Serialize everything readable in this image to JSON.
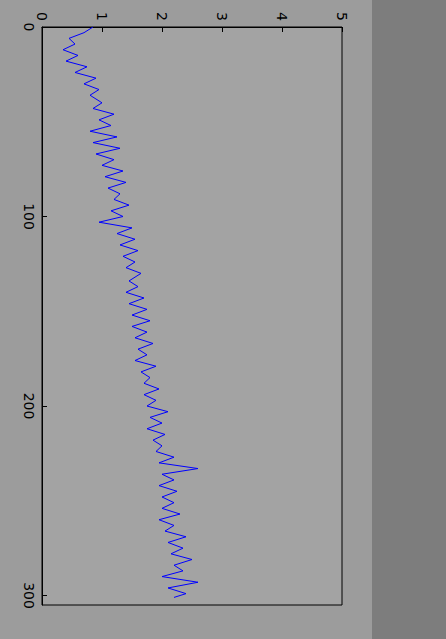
{
  "chart_data": {
    "type": "line",
    "orientation": "horizontal",
    "x": [
      0,
      3,
      6,
      9,
      12,
      15,
      18,
      21,
      24,
      27,
      30,
      33,
      36,
      40,
      43,
      46,
      49,
      52,
      55,
      58,
      61,
      64,
      67,
      70,
      73,
      76,
      79,
      82,
      85,
      88,
      91,
      94,
      97,
      100,
      103,
      106,
      109,
      112,
      115,
      118,
      121,
      124,
      127,
      130,
      134,
      137,
      140,
      143,
      146,
      149,
      152,
      155,
      158,
      161,
      164,
      167,
      170,
      173,
      176,
      179,
      182,
      185,
      188,
      191,
      194,
      197,
      200,
      203,
      206,
      209,
      212,
      215,
      218,
      221,
      224,
      227,
      230,
      233,
      236,
      239,
      242,
      245,
      248,
      251,
      254,
      257,
      260,
      263,
      266,
      269,
      272,
      275,
      278,
      281,
      284,
      287,
      290,
      293,
      296,
      299,
      301
    ],
    "values": [
      0.85,
      0.7,
      0.45,
      0.55,
      0.35,
      0.6,
      0.4,
      0.75,
      0.55,
      0.9,
      0.7,
      0.95,
      0.8,
      1.0,
      0.85,
      1.2,
      0.95,
      1.15,
      0.8,
      1.25,
      0.85,
      1.3,
      0.9,
      1.2,
      1.0,
      1.35,
      1.05,
      1.4,
      1.1,
      1.3,
      1.2,
      1.45,
      1.15,
      1.35,
      0.95,
      1.5,
      1.25,
      1.55,
      1.3,
      1.6,
      1.35,
      1.55,
      1.4,
      1.65,
      1.45,
      1.6,
      1.4,
      1.7,
      1.45,
      1.75,
      1.5,
      1.8,
      1.5,
      1.75,
      1.55,
      1.85,
      1.6,
      1.75,
      1.55,
      1.9,
      1.65,
      1.8,
      1.7,
      1.95,
      1.7,
      1.9,
      1.75,
      2.1,
      1.8,
      2.0,
      1.75,
      2.05,
      1.85,
      2.0,
      1.9,
      2.2,
      1.95,
      2.6,
      2.0,
      2.2,
      1.95,
      2.25,
      2.0,
      2.2,
      2.0,
      2.3,
      1.95,
      2.2,
      2.05,
      2.4,
      2.1,
      2.35,
      2.15,
      2.5,
      2.2,
      2.35,
      2.0,
      2.6,
      2.1,
      2.4,
      2.2
    ],
    "color": "#0000ff",
    "xlim": [
      0,
      305
    ],
    "xticks": [
      0,
      100,
      200,
      300
    ],
    "ylim": [
      0,
      5
    ],
    "yticks": [
      0,
      1,
      2,
      3,
      4,
      5
    ],
    "grid": false
  }
}
